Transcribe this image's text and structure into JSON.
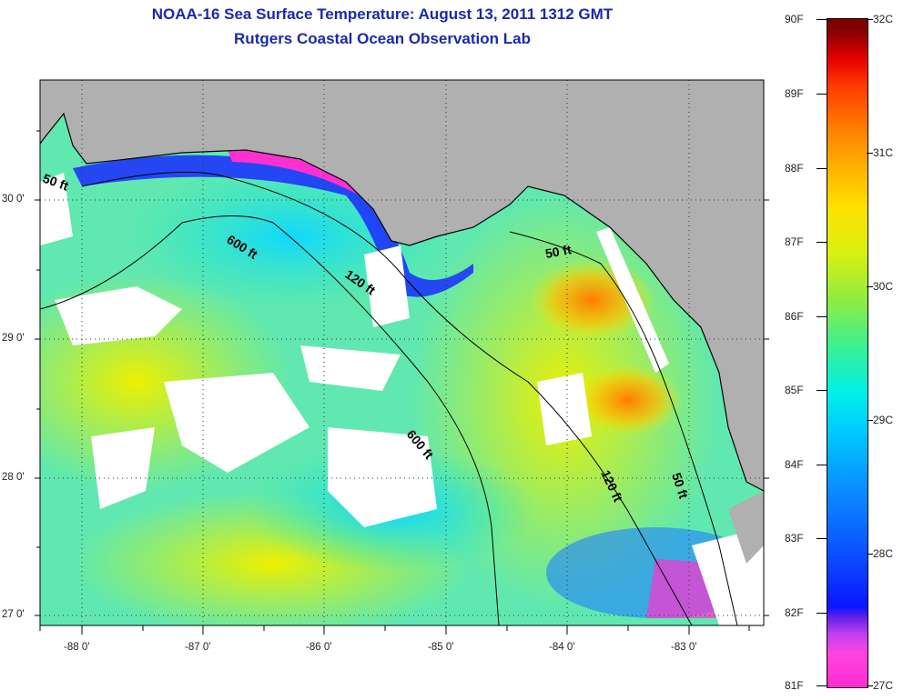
{
  "header": {
    "title_line1": "NOAA-16 Sea Surface Temperature:  August 13, 2011 1312 GMT",
    "title_line2": "Rutgers Coastal Ocean Observation Lab"
  },
  "map": {
    "land_color": "#b0b0b0",
    "latitude_labels": [
      "30 0'",
      "29 0'",
      "28 0'",
      "27 0'"
    ],
    "longitude_labels": [
      "-88 0'",
      "-87 0'",
      "-86 0'",
      "-85 0'",
      "-84 0'",
      "-83 0'"
    ],
    "depth_contours": [
      {
        "label": "50 ft"
      },
      {
        "label": "600 ft"
      },
      {
        "label": "120 ft"
      },
      {
        "label": "50 ft"
      },
      {
        "label": "600 ft"
      },
      {
        "label": "120 ft"
      },
      {
        "label": "50 ft"
      }
    ]
  },
  "colorbar": {
    "fahrenheit_labels": [
      "90F",
      "89F",
      "88F",
      "87F",
      "86F",
      "85F",
      "84F",
      "83F",
      "82F",
      "81F"
    ],
    "celsius_labels": [
      "32C",
      "31C",
      "30C",
      "29C",
      "28C",
      "27C"
    ]
  }
}
